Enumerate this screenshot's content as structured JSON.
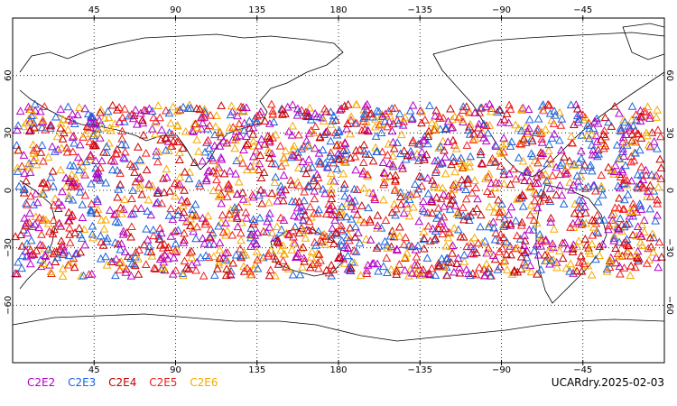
{
  "map": {
    "lon_ticks_top": [
      "45",
      "90",
      "135",
      "180",
      "−135",
      "−90",
      "−45"
    ],
    "lon_ticks_bottom": [
      "45",
      "90",
      "135",
      "180",
      "−135",
      "−90",
      "−45"
    ],
    "lat_ticks_left": [
      "60",
      "30",
      "0",
      "−30",
      "−60"
    ],
    "lat_ticks_right": [
      "60",
      "30",
      "0",
      "−30",
      "−60"
    ],
    "lat_range": [
      -90,
      90
    ],
    "lon_range_from_left_edge": [
      0,
      360
    ],
    "grid": "dotted",
    "marker": "triangle-outline"
  },
  "legend": {
    "items": [
      {
        "label": "C2E2",
        "color": "#b400c8"
      },
      {
        "label": "C2E3",
        "color": "#1e64dc"
      },
      {
        "label": "C2E4",
        "color": "#c80000"
      },
      {
        "label": "C2E5",
        "color": "#f01e1e"
      },
      {
        "label": "C2E6",
        "color": "#f5aa00"
      }
    ]
  },
  "stamp": "UCARdry.2025-02-03",
  "data_coverage": {
    "lat_min": -45,
    "lat_max": 45
  }
}
